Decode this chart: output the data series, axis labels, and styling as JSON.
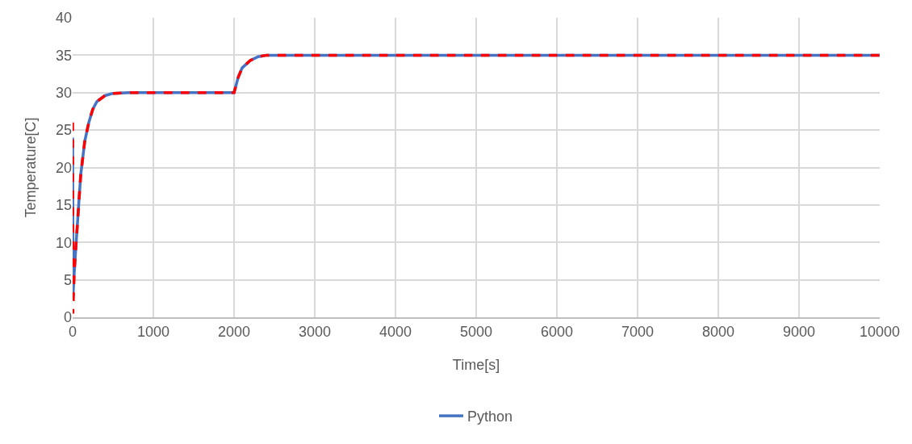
{
  "chart_data": {
    "type": "line",
    "xlabel": "Time[s]",
    "ylabel": "Temperature[C]",
    "xlim": [
      0,
      10000
    ],
    "xticks": [
      0,
      1000,
      2000,
      3000,
      4000,
      5000,
      6000,
      7000,
      8000,
      9000,
      10000
    ],
    "ylim": [
      0,
      40
    ],
    "yticks": [
      0,
      5,
      10,
      15,
      20,
      25,
      30,
      35,
      40
    ],
    "grid": true,
    "legend": "bottom",
    "marker": "none",
    "series": [
      {
        "name": "Python",
        "color": "#4472c4",
        "line_style": "solid",
        "x": [
          0,
          5,
          20,
          50,
          100,
          150,
          200,
          250,
          300,
          400,
          500,
          700,
          1000,
          2000,
          2050,
          2100,
          2200,
          2300,
          2400,
          2600,
          10000
        ],
        "values": [
          24,
          3,
          6,
          11,
          19,
          23.5,
          26,
          27.8,
          28.8,
          29.6,
          29.9,
          30,
          30,
          30,
          32,
          33.3,
          34.3,
          34.8,
          35,
          35,
          35
        ]
      },
      {
        "color": "#ff0000",
        "line_style": "dashed",
        "x": [
          0,
          3,
          20,
          50,
          100,
          150,
          200,
          250,
          300,
          400,
          500,
          700,
          1000,
          2000,
          2050,
          2100,
          2200,
          2300,
          2400,
          2600,
          10000
        ],
        "values": [
          26,
          0.5,
          6,
          11,
          19,
          23.5,
          26,
          27.8,
          28.8,
          29.6,
          29.9,
          30,
          30,
          30,
          32,
          33.3,
          34.3,
          34.8,
          35,
          35,
          35
        ]
      }
    ]
  }
}
